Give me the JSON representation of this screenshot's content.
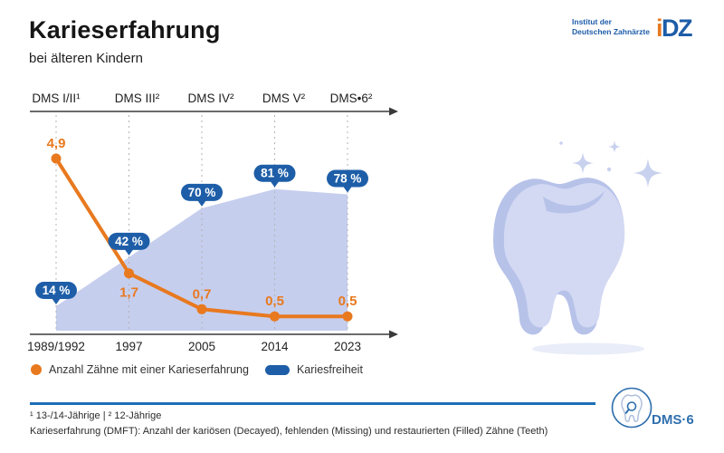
{
  "header": {
    "title": "Karieserfahrung",
    "subtitle": "bei älteren Kindern"
  },
  "idz_logo": {
    "line1": "Institut der",
    "line2": "Deutschen Zahnärzte",
    "mark_i": "i",
    "mark_dz": "DZ"
  },
  "chart_data": {
    "type": "line+area",
    "title": "Karieserfahrung bei älteren Kindern",
    "top_axis_labels": [
      "DMS I/II¹",
      "DMS III²",
      "DMS IV²",
      "DMS V²",
      "DMS•6²"
    ],
    "categories": [
      "1989/1992",
      "1997",
      "2005",
      "2014",
      "2023"
    ],
    "series": [
      {
        "name": "Anzahl Zähne mit einer Karieserfahrung",
        "type": "line",
        "color": "#e8791f",
        "values": [
          4.9,
          1.7,
          0.7,
          0.5,
          0.5
        ],
        "labels": [
          "4,9",
          "1,7",
          "0,7",
          "0,5",
          "0,5"
        ],
        "label_positions": [
          "above",
          "below",
          "above",
          "above",
          "above"
        ]
      },
      {
        "name": "Kariesfreiheit",
        "type": "area",
        "color": "#c6ceee",
        "badge_color": "#1e5ea8",
        "values": [
          14,
          42,
          70,
          81,
          78
        ],
        "labels": [
          "14 %",
          "42 %",
          "70 %",
          "81 %",
          "78 %"
        ]
      }
    ],
    "ylim_line": [
      0,
      5.5
    ],
    "ylim_area_pct": [
      0,
      100
    ],
    "grid": "dashed-vertical",
    "legend_position": "bottom"
  },
  "footer": {
    "footnote1": "¹ 13-/14-Jährige | ² 12-Jährige",
    "footnote2": "Karieserfahrung (DMFT): Anzahl der kariösen (Decayed), fehlenden (Missing) und restaurierten (Filled) Zähne (Teeth)",
    "dms6_label": "DMS·6"
  },
  "colors": {
    "orange": "#e8791f",
    "badge_blue": "#1e5ea8",
    "area_blue": "#c6ceee",
    "rule_blue": "#1d6fb8",
    "idz_blue": "#1d5ca8",
    "tooth_dark": "#b7c2e9",
    "tooth_light": "#d3d9f3"
  }
}
